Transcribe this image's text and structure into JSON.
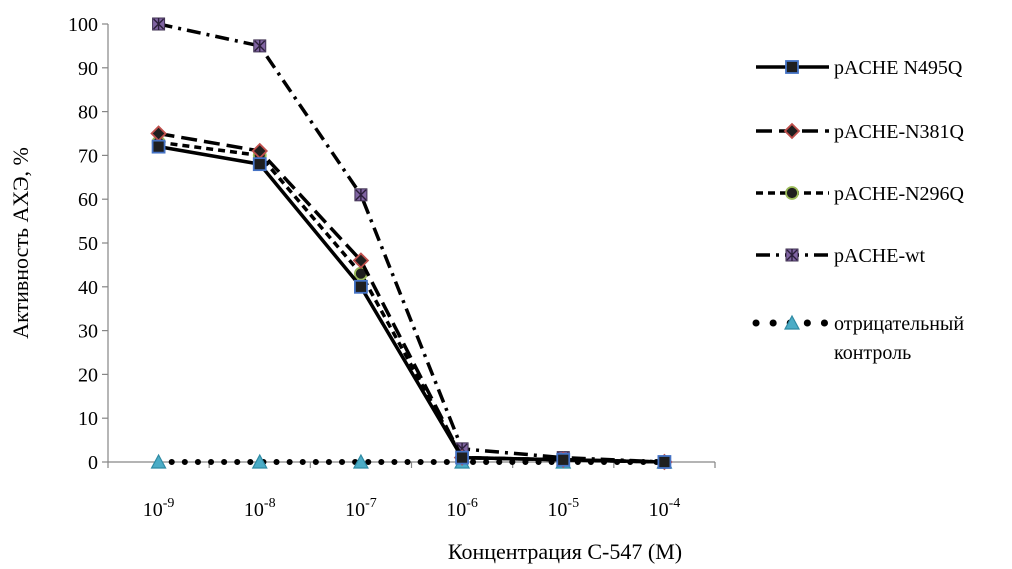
{
  "chart_data": {
    "type": "line",
    "categories": [
      "10-9",
      "10-8",
      "10-7",
      "10-6",
      "10-5",
      "10-4"
    ],
    "x_ticks": [
      {
        "base": "10",
        "exp": "-9"
      },
      {
        "base": "10",
        "exp": "-8"
      },
      {
        "base": "10",
        "exp": "-7"
      },
      {
        "base": "10",
        "exp": "-6"
      },
      {
        "base": "10",
        "exp": "-5"
      },
      {
        "base": "10",
        "exp": "-4"
      }
    ],
    "y_ticks": [
      "0",
      "10",
      "20",
      "30",
      "40",
      "50",
      "60",
      "70",
      "80",
      "90",
      "100"
    ],
    "ylim": [
      0,
      100
    ],
    "xlabel": "Концентрация С-547 (М)",
    "ylabel": "Активность АХЭ, %",
    "grid": false,
    "legend_position": "right",
    "series": [
      {
        "name": "pACHE N495Q",
        "values": [
          72,
          68,
          40,
          1,
          0.5,
          0
        ],
        "marker": "square",
        "marker_color": "#4472C4",
        "dash": "solid"
      },
      {
        "name": "pACHE-N381Q",
        "values": [
          75,
          71,
          46,
          1,
          0.5,
          0
        ],
        "marker": "diamond",
        "marker_color": "#C0504D",
        "dash": "long-dash"
      },
      {
        "name": "pACHE-N296Q",
        "values": [
          73,
          70,
          43,
          1,
          0.5,
          0
        ],
        "marker": "circle",
        "marker_color": "#9BBB59",
        "dash": "short-dash"
      },
      {
        "name": "pACHE-wt",
        "values": [
          100,
          95,
          61,
          3,
          1,
          0
        ],
        "marker": "star-square",
        "marker_color": "#8064A2",
        "dash": "dash-dot"
      },
      {
        "name": "отрицательный контроль",
        "legend_lines": [
          "отрицательный",
          "контроль"
        ],
        "values": [
          0,
          0,
          0,
          0,
          0,
          0
        ],
        "marker": "triangle",
        "marker_color": "#4BACC6",
        "dash": "round-dot"
      }
    ]
  }
}
